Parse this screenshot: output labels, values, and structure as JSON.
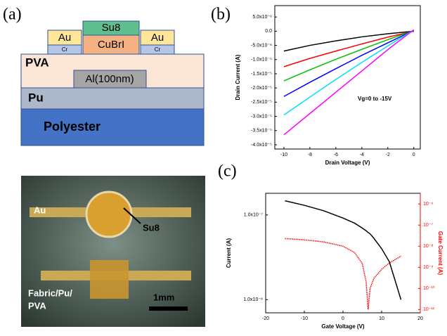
{
  "panels": [
    "(a)",
    "(b)",
    "(c)"
  ],
  "diagram": {
    "su8": "Su8",
    "au_left": "Au",
    "cubri": "CuBrI",
    "au_right": "Au",
    "cr_left": "Cr",
    "cr_right": "Cr",
    "pva": "PVA",
    "al": "Al(100nm)",
    "pu": "Pu",
    "polyester": "Polyester"
  },
  "photo": {
    "au": "Au",
    "su8": "Su8",
    "fabric": [
      "Fabric/Pu/",
      "PVA"
    ],
    "scale": "1mm"
  },
  "chart_data": [
    {
      "type": "line",
      "x_label": "Drain Voltage (V)",
      "y_label": "Drain Current (A)",
      "annotation": "Vg=0 to -15V",
      "x": [
        -10,
        -8,
        -6,
        -4,
        -2,
        0
      ],
      "series": [
        {
          "color": "#000000",
          "values": [
            -7e-06,
            -5e-06,
            -3.4e-06,
            -2e-06,
            -9e-07,
            0
          ]
        },
        {
          "color": "#ff0000",
          "values": [
            -1.25e-05,
            -9.6e-06,
            -7e-06,
            -4.5e-06,
            -2.1e-06,
            0
          ]
        },
        {
          "color": "#00c000",
          "values": [
            -1.75e-05,
            -1.36e-05,
            -9.9e-06,
            -6.4e-06,
            -3e-06,
            2e-07
          ]
        },
        {
          "color": "#0000ff",
          "values": [
            -2.3e-05,
            -1.8e-05,
            -1.32e-05,
            -8.5e-06,
            -4.1e-06,
            3e-07
          ]
        },
        {
          "color": "#00e0ff",
          "values": [
            -2.95e-05,
            -2.32e-05,
            -1.7e-05,
            -1.1e-05,
            -5.2e-06,
            4e-07
          ]
        },
        {
          "color": "#ff00ff",
          "values": [
            -3.65e-05,
            -2.9e-05,
            -2.15e-05,
            -1.4e-05,
            -6.5e-06,
            5e-07
          ]
        }
      ],
      "xlim": [
        -10.7,
        0.5
      ],
      "xticks": [
        -10,
        -8,
        -6,
        -4,
        -2,
        0
      ],
      "ylim": [
        -4.15e-05,
        9e-06
      ],
      "yticks": [
        {
          "value": 5e-06,
          "label": "5.0x10⁻⁶"
        },
        {
          "value": 0,
          "label": "0.0"
        },
        {
          "value": -5e-06,
          "label": "-5.0x10⁻⁶"
        },
        {
          "value": -1e-05,
          "label": "-1.0x10⁻⁵"
        },
        {
          "value": -1.5e-05,
          "label": "-1.5x10⁻⁵"
        },
        {
          "value": -2e-05,
          "label": "-2.0x10⁻⁵"
        },
        {
          "value": -2.5e-05,
          "label": "-2.5x10⁻⁵"
        },
        {
          "value": -3e-05,
          "label": "-3.0x10⁻⁵"
        },
        {
          "value": -3.5e-05,
          "label": "-3.5x10⁻⁵"
        },
        {
          "value": -4e-05,
          "label": "-4.0x10⁻⁵"
        }
      ]
    },
    {
      "type": "line",
      "x_label": "Gate Voltage (V)",
      "y_label": "Current (A)",
      "y2_label": "Gate Current (A)",
      "y2_color": "#ff0000",
      "x": [
        -15,
        -10,
        -5,
        0,
        3,
        5,
        6,
        6.5,
        7,
        8,
        10,
        12,
        15
      ],
      "series": [
        {
          "color": "#000000",
          "values": [
            1.47e-07,
            1.3e-07,
            1.12e-07,
            9.2e-08,
            8e-08,
            7e-08,
            6.5e-08,
            6.2e-08,
            6e-08,
            5.3e-08,
            4e-08,
            2.8e-08,
            1e-08
          ]
        },
        {
          "color": "#ff0000",
          "axis": "y2",
          "values": [
            2.3e-08,
            2e-08,
            1.6e-08,
            1e-08,
            5e-09,
            1.5e-09,
            2e-10,
            1e-11,
            1e-10,
            3e-10,
            8e-10,
            1.6e-09,
            3.4e-09
          ]
        }
      ],
      "xlim": [
        -20,
        20
      ],
      "xticks": [
        -20,
        -10,
        0,
        10,
        20
      ],
      "ylog": true,
      "ylim": [
        7e-09,
        1.8e-07
      ],
      "yticks": [
        {
          "value": 1e-07,
          "label": "1.0x10⁻⁷"
        },
        {
          "value": 1e-08,
          "label": "1.0x10⁻⁸"
        }
      ],
      "y2log": true,
      "y2lim": [
        7e-12,
        3.2e-06
      ],
      "y2ticks": [
        {
          "value": 1e-06,
          "label": "10⁻⁶"
        },
        {
          "value": 1e-07,
          "label": "10⁻⁷"
        },
        {
          "value": 1e-08,
          "label": "10⁻⁸"
        },
        {
          "value": 1e-09,
          "label": "10⁻⁹"
        },
        {
          "value": 1e-10,
          "label": "10⁻¹⁰"
        },
        {
          "value": 1e-11,
          "label": "10⁻¹¹"
        }
      ]
    }
  ]
}
